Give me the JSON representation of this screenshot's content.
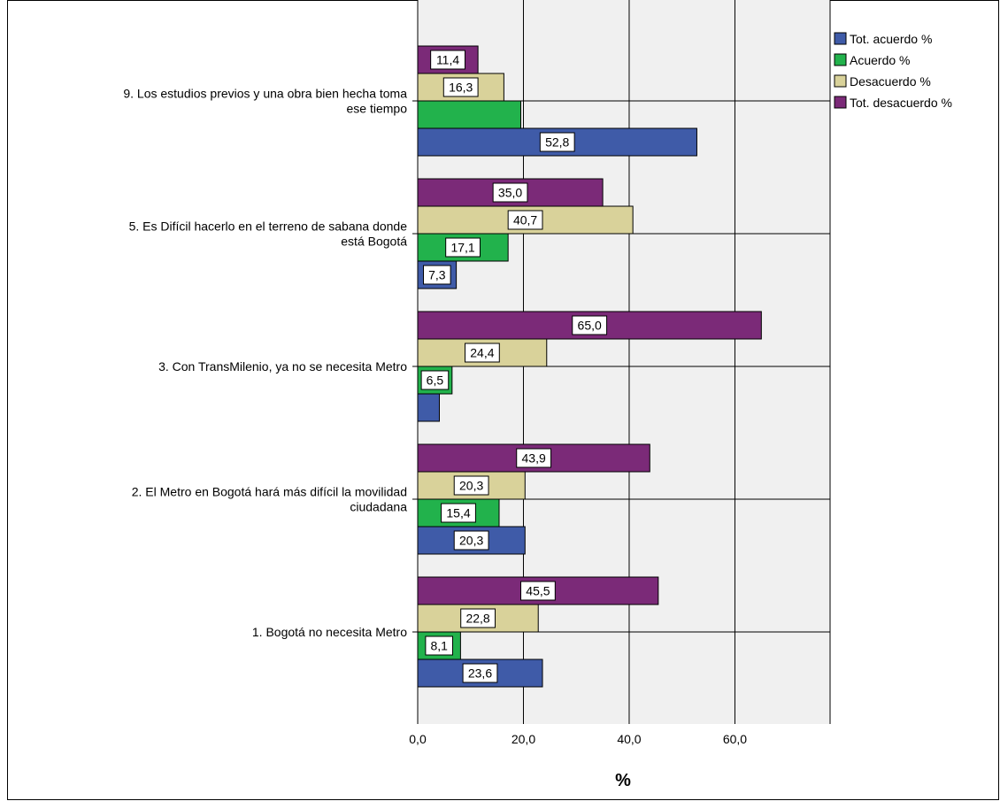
{
  "chart_data": {
    "type": "bar",
    "orientation": "horizontal",
    "title": "",
    "xlabel": "%",
    "ylabel": "",
    "xlim": [
      0,
      78
    ],
    "xticks": [
      0,
      20,
      40,
      60
    ],
    "xtick_labels": [
      "0,0",
      "20,0",
      "40,0",
      "60,0"
    ],
    "grid": true,
    "legend_position": "top-right",
    "categories": [
      "9. Los estudios previos y una obra bien hecha toma ese tiempo",
      "5. Es Difícil hacerlo en el terreno de sabana donde está Bogotá",
      "3. Con TransMilenio, ya no se necesita Metro",
      "2. El Metro en Bogotá hará más difícil la movilidad ciudadana",
      "1. Bogotá no necesita Metro"
    ],
    "category_label_lines": [
      [
        "9. Los estudios previos y una obra bien hecha toma",
        "ese tiempo"
      ],
      [
        "5. Es Difícil hacerlo en el terreno de sabana donde",
        "está Bogotá"
      ],
      [
        "3. Con TransMilenio, ya no se necesita Metro"
      ],
      [
        "2. El Metro en Bogotá hará más difícil la movilidad",
        "ciudadana"
      ],
      [
        "1. Bogotá no necesita Metro"
      ]
    ],
    "series": [
      {
        "name": "Tot. acuerdo %",
        "color": "#3F5BA8",
        "values": [
          52.8,
          7.3,
          4.1,
          20.3,
          23.6
        ],
        "labels": [
          "52,8",
          "7,3",
          "",
          "20,3",
          "23,6"
        ]
      },
      {
        "name": "Acuerdo %",
        "color": "#22B24C",
        "values": [
          19.5,
          17.1,
          6.5,
          15.4,
          8.1
        ],
        "labels": [
          "",
          "17,1",
          "6,5",
          "15,4",
          "8,1"
        ]
      },
      {
        "name": "Desacuerdo %",
        "color": "#D9D29A",
        "values": [
          16.3,
          40.7,
          24.4,
          20.3,
          22.8
        ],
        "labels": [
          "16,3",
          "40,7",
          "24,4",
          "20,3",
          "22,8"
        ]
      },
      {
        "name": "Tot. desacuerdo %",
        "color": "#7B2A78",
        "values": [
          11.4,
          35.0,
          65.0,
          43.9,
          45.5
        ],
        "labels": [
          "11,4",
          "35,0",
          "65,0",
          "43,9",
          "45,5"
        ]
      }
    ]
  }
}
